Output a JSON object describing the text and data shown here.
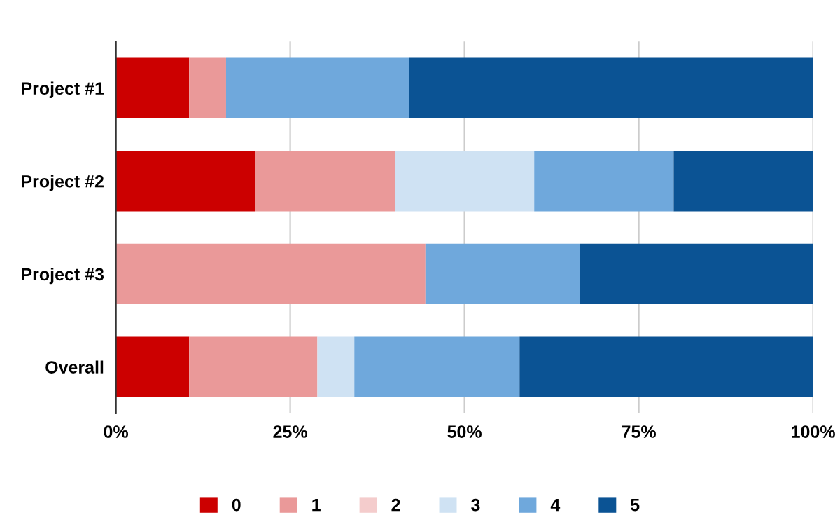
{
  "chart_data": {
    "type": "bar",
    "orientation": "horizontal",
    "stacked": true,
    "categories": [
      "Project #1",
      "Project #2",
      "Project #3",
      "Overall"
    ],
    "series": [
      {
        "name": "0",
        "color": "#cc0000",
        "values": [
          10.5,
          20,
          null,
          10.5
        ]
      },
      {
        "name": "1",
        "color": "#ea9999",
        "values": [
          5.3,
          20,
          44.4,
          18.4
        ]
      },
      {
        "name": "2",
        "color": "#f4cccc",
        "values": [
          null,
          null,
          null,
          null
        ]
      },
      {
        "name": "3",
        "color": "#cfe2f3",
        "values": [
          null,
          20,
          null,
          5.3
        ]
      },
      {
        "name": "4",
        "color": "#6fa8dc",
        "values": [
          26.3,
          20,
          22.2,
          23.7
        ]
      },
      {
        "name": "5",
        "color": "#0b5394",
        "values": [
          57.9,
          20,
          33.4,
          42.1
        ]
      }
    ],
    "xlim": [
      0,
      100
    ],
    "xticks": [
      {
        "value": 0,
        "label": "0%"
      },
      {
        "value": 25,
        "label": "25%"
      },
      {
        "value": 50,
        "label": "50%"
      },
      {
        "value": 75,
        "label": "75%"
      },
      {
        "value": 100,
        "label": "100%"
      }
    ],
    "grid": "x",
    "legend": "bottom"
  }
}
